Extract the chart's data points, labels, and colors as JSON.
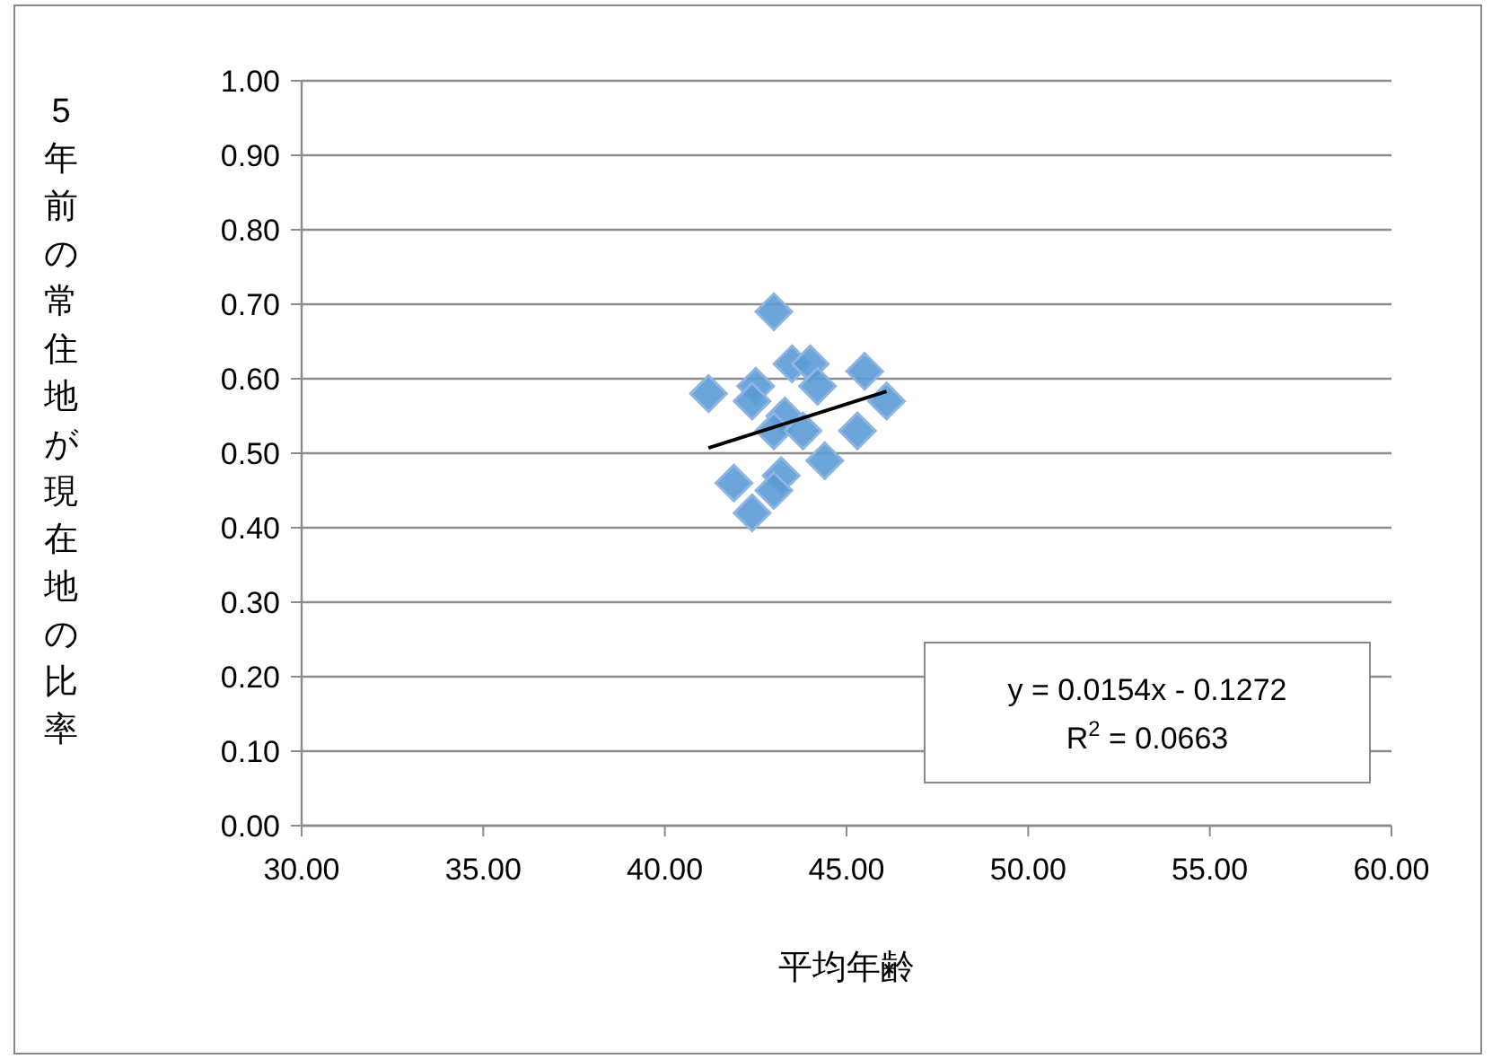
{
  "chart_data": {
    "type": "scatter",
    "xlabel": "平均年齢",
    "ylabel": "5年前の常住地が現在地の比率",
    "xlim": [
      30,
      60
    ],
    "xticks": [
      {
        "value": 30,
        "label": "30.00"
      },
      {
        "value": 35,
        "label": "35.00"
      },
      {
        "value": 40,
        "label": "40.00"
      },
      {
        "value": 45,
        "label": "45.00"
      },
      {
        "value": 50,
        "label": "50.00"
      },
      {
        "value": 55,
        "label": "55.00"
      },
      {
        "value": 60,
        "label": "60.00"
      }
    ],
    "ylim": [
      0,
      1
    ],
    "yticks": [
      {
        "value": 0,
        "label": "0.00"
      },
      {
        "value": 0.1,
        "label": "0.10"
      },
      {
        "value": 0.2,
        "label": "0.20"
      },
      {
        "value": 0.3,
        "label": "0.30"
      },
      {
        "value": 0.4,
        "label": "0.40"
      },
      {
        "value": 0.5,
        "label": "0.50"
      },
      {
        "value": 0.6,
        "label": "0.60"
      },
      {
        "value": 0.7,
        "label": "0.70"
      },
      {
        "value": 0.8,
        "label": "0.80"
      },
      {
        "value": 0.9,
        "label": "0.90"
      },
      {
        "value": 1,
        "label": "1.00"
      }
    ],
    "grid": "y",
    "marker": "diamond",
    "series": [
      {
        "color": "#5b9bd5",
        "x": [
          43.0,
          41.2,
          42.5,
          42.4,
          43.5,
          44.0,
          44.2,
          43.3,
          43.0,
          43.8,
          44.4,
          45.5,
          46.1,
          45.3,
          43.2,
          41.9,
          43.0,
          42.4
        ],
        "values": [
          0.69,
          0.58,
          0.59,
          0.57,
          0.62,
          0.62,
          0.59,
          0.55,
          0.53,
          0.53,
          0.49,
          0.61,
          0.57,
          0.53,
          0.47,
          0.46,
          0.45,
          0.42
        ]
      },
      {
        "type": "line",
        "color": "#000000",
        "marker": "none",
        "x": [
          41.2,
          46.1
        ],
        "values": [
          0.507,
          0.583
        ]
      }
    ],
    "annotations": [
      "y = 0.0154x - 0.1272",
      "R$^{2}$ = 0.0663"
    ]
  }
}
